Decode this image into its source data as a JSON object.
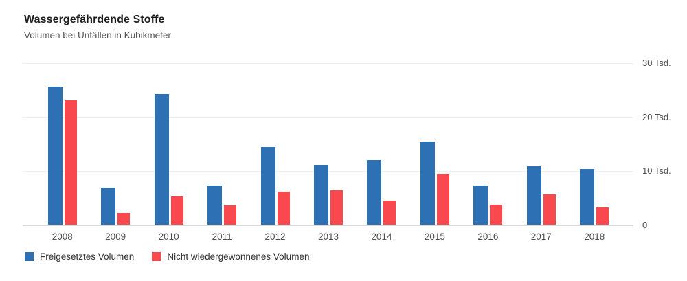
{
  "header": {
    "title": "Wassergefährdende Stoffe",
    "subtitle": "Volumen bei Unfällen in Kubikmeter"
  },
  "chart_data": {
    "type": "bar",
    "title": "Wassergefährdende Stoffe",
    "subtitle": "Volumen bei Unfällen in Kubikmeter",
    "unit": "Tsd. Kubikmeter",
    "categories": [
      "2008",
      "2009",
      "2010",
      "2011",
      "2012",
      "2013",
      "2014",
      "2015",
      "2016",
      "2017",
      "2018"
    ],
    "series": [
      {
        "name": "Freigesetztes Volumen",
        "color": "#2d70b3",
        "values": [
          25.5,
          6.9,
          24.1,
          7.3,
          14.4,
          11.0,
          11.9,
          15.4,
          7.3,
          10.8,
          10.3
        ]
      },
      {
        "name": "Nicht wiedergewonnenes Volumen",
        "color": "#f9494e",
        "values": [
          23.0,
          2.2,
          5.2,
          3.5,
          6.1,
          6.4,
          4.5,
          9.4,
          3.7,
          5.6,
          3.2
        ]
      }
    ],
    "ylim": [
      0,
      30
    ],
    "y_ticks": [
      {
        "value": 30,
        "label": "30 Tsd."
      },
      {
        "value": 20,
        "label": "20 Tsd."
      },
      {
        "value": 10,
        "label": "10 Tsd."
      },
      {
        "value": 0,
        "label": "0"
      }
    ],
    "grid": true,
    "legend_position": "bottom",
    "colors": {
      "grid": "#f0f0f0",
      "baseline": "#d9d9d9",
      "axis_text": "#4d4d4d",
      "title_text": "#1d1d1d",
      "subtitle_text": "#555555"
    }
  }
}
